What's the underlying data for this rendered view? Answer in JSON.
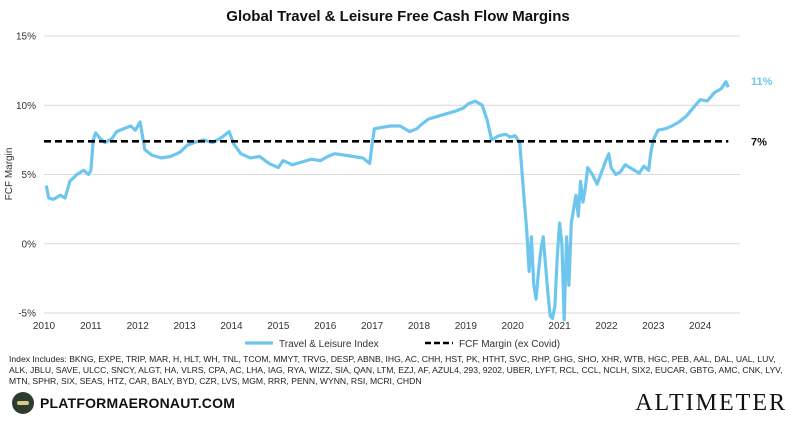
{
  "chart_data": {
    "type": "line",
    "title": "Global Travel & Leisure Free Cash Flow Margins",
    "ylabel": "FCF Margin",
    "xlabel": "",
    "xlim": [
      2010,
      2024.85
    ],
    "ylim": [
      -5,
      15
    ],
    "x_ticks": [
      "2010",
      "2011",
      "2012",
      "2013",
      "2014",
      "2015",
      "2016",
      "2017",
      "2018",
      "2019",
      "2020",
      "2021",
      "2022",
      "2023",
      "2024"
    ],
    "y_ticks": [
      "-5%",
      "0%",
      "5%",
      "10%",
      "15%"
    ],
    "grid": "horizontal",
    "legend_position": "bottom",
    "series": [
      {
        "name": "Travel & Leisure Index",
        "color": "#6ec6ef",
        "end_label": "11%",
        "x": [
          2010.05,
          2010.1,
          2010.2,
          2010.35,
          2010.45,
          2010.55,
          2010.7,
          2010.85,
          2010.95,
          2011.0,
          2011.05,
          2011.1,
          2011.2,
          2011.3,
          2011.45,
          2011.55,
          2011.7,
          2011.85,
          2011.95,
          2012.05,
          2012.15,
          2012.3,
          2012.5,
          2012.7,
          2012.9,
          2013.05,
          2013.2,
          2013.4,
          2013.6,
          2013.8,
          2013.95,
          2014.05,
          2014.2,
          2014.4,
          2014.6,
          2014.8,
          2015.0,
          2015.1,
          2015.3,
          2015.5,
          2015.7,
          2015.9,
          2016.05,
          2016.2,
          2016.4,
          2016.6,
          2016.8,
          2016.95,
          2017.0,
          2017.05,
          2017.2,
          2017.4,
          2017.6,
          2017.8,
          2017.95,
          2018.05,
          2018.2,
          2018.4,
          2018.6,
          2018.8,
          2018.95,
          2019.05,
          2019.2,
          2019.35,
          2019.45,
          2019.55,
          2019.7,
          2019.85,
          2019.95,
          2020.05,
          2020.15,
          2020.25,
          2020.3,
          2020.35,
          2020.4,
          2020.45,
          2020.5,
          2020.55,
          2020.6,
          2020.65,
          2020.7,
          2020.75,
          2020.8,
          2020.85,
          2020.9,
          2020.95,
          2021.0,
          2021.05,
          2021.1,
          2021.15,
          2021.2,
          2021.25,
          2021.3,
          2021.35,
          2021.4,
          2021.45,
          2021.5,
          2021.55,
          2021.6,
          2021.7,
          2021.8,
          2021.9,
          2022.0,
          2022.05,
          2022.1,
          2022.2,
          2022.3,
          2022.4,
          2022.55,
          2022.7,
          2022.8,
          2022.9,
          2022.95,
          2023.0,
          2023.1,
          2023.25,
          2023.4,
          2023.55,
          2023.7,
          2023.85,
          2024.0,
          2024.15,
          2024.3,
          2024.45,
          2024.55,
          2024.6
        ],
        "y": [
          4.2,
          3.3,
          3.2,
          3.5,
          3.3,
          4.5,
          5.0,
          5.3,
          5.0,
          5.3,
          7.5,
          8.0,
          7.6,
          7.3,
          7.6,
          8.1,
          8.3,
          8.5,
          8.2,
          8.8,
          6.8,
          6.4,
          6.2,
          6.3,
          6.6,
          7.1,
          7.3,
          7.5,
          7.3,
          7.7,
          8.1,
          7.2,
          6.5,
          6.2,
          6.3,
          5.8,
          5.5,
          6.0,
          5.7,
          5.9,
          6.1,
          6.0,
          6.3,
          6.5,
          6.4,
          6.3,
          6.2,
          5.8,
          7.2,
          8.3,
          8.4,
          8.5,
          8.5,
          8.1,
          8.3,
          8.6,
          9.0,
          9.2,
          9.4,
          9.6,
          9.8,
          10.1,
          10.3,
          10.0,
          9.0,
          7.5,
          7.8,
          7.9,
          7.7,
          7.8,
          7.3,
          3.0,
          1.0,
          -2.0,
          0.5,
          -3.0,
          -4.0,
          -2.0,
          -0.5,
          0.5,
          -1.5,
          -3.5,
          -5.2,
          -5.4,
          -4.5,
          -1.0,
          1.5,
          0.0,
          -5.5,
          0.5,
          -3.0,
          1.5,
          2.5,
          3.5,
          2.0,
          4.5,
          3.0,
          4.0,
          5.5,
          5.0,
          4.3,
          5.2,
          6.1,
          6.5,
          5.5,
          5.0,
          5.2,
          5.7,
          5.4,
          5.1,
          5.6,
          5.3,
          6.6,
          7.5,
          8.2,
          8.3,
          8.5,
          8.8,
          9.2,
          9.8,
          10.4,
          10.3,
          10.9,
          11.2,
          11.7,
          11.3
        ]
      },
      {
        "name": "FCF Margin (ex Covid)",
        "color": "#000000",
        "dashed": true,
        "end_label": "7%",
        "x": [
          2010.0,
          2024.6
        ],
        "y": [
          7.4,
          7.4
        ]
      }
    ]
  },
  "footnote": "Index Includes: BKNG, EXPE, TRIP, MAR, H, HLT, WH, TNL, TCOM, MMYT, TRVG, DESP, ABNB, IHG, AC, CHH, HST, PK, HTHT, SVC, RHP, GHG, SHO, XHR, WTB, HGC, PEB, AAL, DAL, UAL, LUV, ALK, JBLU, SAVE, ULCC, SNCY, ALGT, HA, VLRS, CPA, AC, LHA, IAG, RYA, WIZZ, SIA, QAN, LTM, EZJ, AF, AZUL4, 293, 9202, UBER, LYFT, RCL, CCL, NCLH, SIX2, EUCAR, GBTG, AMC, CNK, LYV, MTN, SPHR, SIX, SEAS, HTZ, CAR, BALY, BYD, CZR, LVS, MGM, RRR, PENN, WYNN, RSI, MCRI, CHDN",
  "brand_left": "PLATFORMAERONAUT.COM",
  "brand_right": "ALTIMETER"
}
